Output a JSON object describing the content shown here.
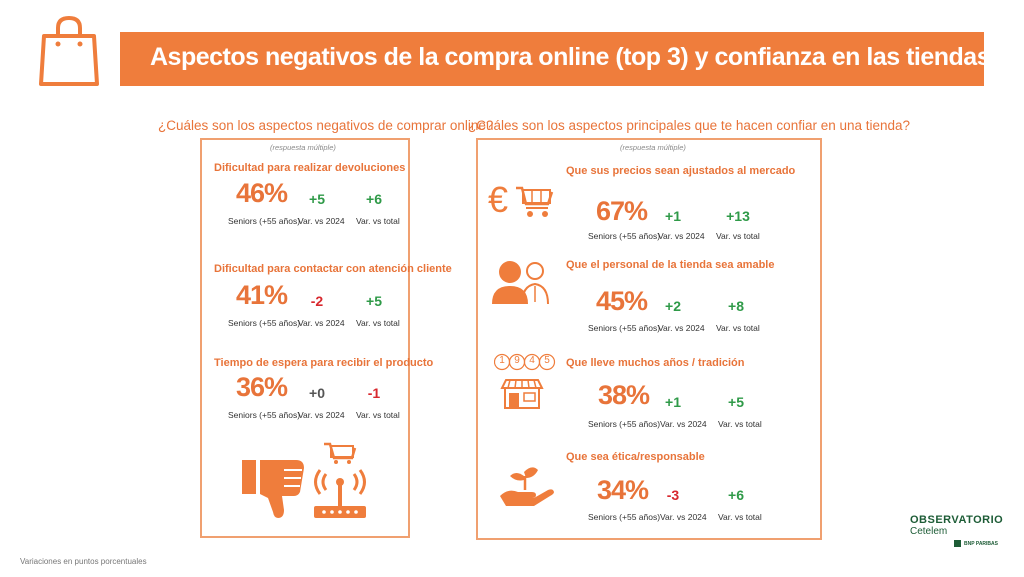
{
  "header": {
    "title": "Aspectos negativos de la compra online (top 3) y confianza en las tiendas"
  },
  "left": {
    "question": "¿Cuáles son los aspectos negativos de comprar online?",
    "note": "(respuesta múltiple)",
    "items": [
      {
        "title": "Dificultad para realizar devoluciones",
        "pct": "46%",
        "var2024": "+5",
        "var2024_class": "pos",
        "vartotal": "+6",
        "vartotal_class": "pos"
      },
      {
        "title": "Dificultad para contactar con atención cliente",
        "pct": "41%",
        "var2024": "-2",
        "var2024_class": "neg",
        "vartotal": "+5",
        "vartotal_class": "pos"
      },
      {
        "title": "Tiempo de espera para recibir el producto",
        "pct": "36%",
        "var2024": "+0",
        "var2024_class": "neu",
        "vartotal": "-1",
        "vartotal_class": "neg"
      }
    ]
  },
  "right": {
    "question": "¿Cuáles son los aspectos principales que te hacen confiar en una tienda?",
    "note": "(respuesta múltiple)",
    "items": [
      {
        "title": "Que sus precios sean ajustados al mercado",
        "pct": "67%",
        "var2024": "+1",
        "var2024_class": "pos",
        "vartotal": "+13",
        "vartotal_class": "pos",
        "icon": "euro-cart-icon"
      },
      {
        "title": "Que el personal de la tienda sea amable",
        "pct": "45%",
        "var2024": "+2",
        "var2024_class": "pos",
        "vartotal": "+8",
        "vartotal_class": "pos",
        "icon": "staff-icon"
      },
      {
        "title": "Que lleve muchos años / tradición",
        "pct": "38%",
        "var2024": "+1",
        "var2024_class": "pos",
        "vartotal": "+5",
        "vartotal_class": "pos",
        "icon": "store-1945-icon",
        "year_digits": [
          "1",
          "9",
          "4",
          "5"
        ]
      },
      {
        "title": "Que sea ética/responsable",
        "pct": "34%",
        "var2024": "-3",
        "var2024_class": "neg",
        "vartotal": "+6",
        "vartotal_class": "pos",
        "icon": "hand-plant-icon"
      }
    ]
  },
  "captions": {
    "seniors": "Seniors (+55 años)",
    "var2024": "Var. vs 2024",
    "vartotal": "Var. vs total"
  },
  "footer": {
    "note": "Variaciones en puntos porcentuales"
  },
  "logo": {
    "line1": "OBSERVATORIO",
    "line2": "Cetelem",
    "line3": "BNP PARIBAS"
  },
  "colors": {
    "orange": "#ef7d3c",
    "positive": "#2f9a48",
    "negative": "#d8282e",
    "neutral": "#555555",
    "logo_green": "#1d5c36"
  }
}
